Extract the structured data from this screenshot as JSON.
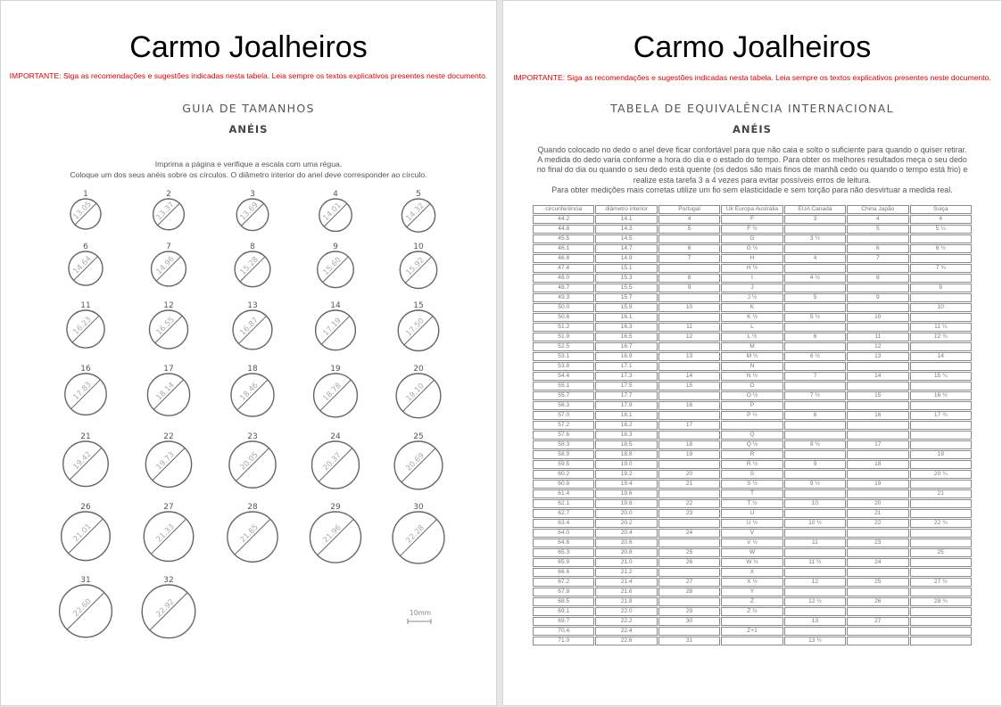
{
  "page1": {
    "brand": "Carmo Joalheiros",
    "notice": "IMPORTANTE: Siga as recomendações e sugestões indicadas nesta tabela. Leia sempre os textos explicativos presentes neste documento.",
    "heading": "GUIA DE TAMANHOS",
    "subheading": "ANÉIS",
    "instructions": [
      "Imprima a página e verifique a escala com uma régua.",
      "Coloque um dos seus anéis sobre os círculos. O diâmetro interior do anel deve corresponder ao círculo."
    ],
    "rings": [
      {
        "n": "1",
        "d": "13.05"
      },
      {
        "n": "2",
        "d": "13.37"
      },
      {
        "n": "3",
        "d": "13.69"
      },
      {
        "n": "4",
        "d": "14.01"
      },
      {
        "n": "5",
        "d": "14.32"
      },
      {
        "n": "6",
        "d": "14.64"
      },
      {
        "n": "7",
        "d": "14.96"
      },
      {
        "n": "8",
        "d": "15.28"
      },
      {
        "n": "9",
        "d": "15.60"
      },
      {
        "n": "10",
        "d": "15.92"
      },
      {
        "n": "11",
        "d": "16.23"
      },
      {
        "n": "12",
        "d": "16.55"
      },
      {
        "n": "13",
        "d": "16.87"
      },
      {
        "n": "14",
        "d": "17.19"
      },
      {
        "n": "15",
        "d": "17.50"
      },
      {
        "n": "16",
        "d": "17.83"
      },
      {
        "n": "17",
        "d": "18.14"
      },
      {
        "n": "18",
        "d": "18.46"
      },
      {
        "n": "19",
        "d": "18.78"
      },
      {
        "n": "20",
        "d": "19.10"
      },
      {
        "n": "21",
        "d": "19.42"
      },
      {
        "n": "22",
        "d": "19.73"
      },
      {
        "n": "23",
        "d": "20.05"
      },
      {
        "n": "24",
        "d": "20.37"
      },
      {
        "n": "25",
        "d": "20.69"
      },
      {
        "n": "26",
        "d": "21.01"
      },
      {
        "n": "27",
        "d": "21.33"
      },
      {
        "n": "28",
        "d": "21.65"
      },
      {
        "n": "29",
        "d": "21.96"
      },
      {
        "n": "30",
        "d": "22.28"
      },
      {
        "n": "31",
        "d": "22.60"
      },
      {
        "n": "32",
        "d": "22.92"
      }
    ],
    "scale_label": "10mm"
  },
  "page2": {
    "brand": "Carmo Joalheiros",
    "notice": "IMPORTANTE: Siga as recomendações e sugestões indicadas nesta tabela. Leia sempre os textos explicativos presentes neste documento.",
    "heading": "TABELA DE EQUIVALÊNCIA INTERNACIONAL",
    "subheading": "ANÉIS",
    "paragraph": [
      "Quando colocado no dedo o anel deve ficar confortável para que não caia e solto o suficiente para quando o quiser retirar.",
      "A medida do dedo varia conforme a hora do dia e o estado do tempo. Para obter os melhores resultados meça o seu dedo",
      "no final do dia ou quando o seu dedo está quente (os dedos são mais finos de manhã cedo ou quando o tempo está frio) e",
      "realize esta tarefa 3 a 4 vezes para evitar possíveis erros de leitura.",
      "Para obter medições mais corretas utilize um fio sem elasticidade e sem torção para não desvirtuar a medida real."
    ],
    "table": {
      "headers": [
        "circunferência",
        "diâmetro interior",
        "Portugal",
        "Uk Europa Austrália",
        "EUA Canadá",
        "China Japão",
        "Suiça"
      ],
      "rows": [
        [
          "44.2",
          "14.1",
          "4",
          "F",
          "3",
          "4",
          "4"
        ],
        [
          "44.8",
          "14.3",
          "5",
          "F ½",
          "",
          "5",
          "5 ¼"
        ],
        [
          "45.5",
          "14.5",
          "",
          "G",
          "3 ½",
          "",
          ""
        ],
        [
          "46.1",
          "14.7",
          "6",
          "G ½",
          "",
          "6",
          "6 ½"
        ],
        [
          "46.8",
          "14.9",
          "7",
          "H",
          "4",
          "7",
          ""
        ],
        [
          "47.4",
          "15.1",
          "",
          "H ½",
          "",
          "",
          "7 ¾"
        ],
        [
          "48.0",
          "15.3",
          "8",
          "I",
          "4 ½",
          "8",
          ""
        ],
        [
          "48.7",
          "15.5",
          "9",
          "J",
          "",
          "",
          "9"
        ],
        [
          "49.3",
          "15.7",
          "",
          "J ½",
          "5",
          "9",
          ""
        ],
        [
          "50.0",
          "15.9",
          "10",
          "K",
          "",
          "",
          "10"
        ],
        [
          "50.6",
          "16.1",
          "",
          "K ½",
          "5 ½",
          "10",
          ""
        ],
        [
          "51.2",
          "16.3",
          "11",
          "L",
          "",
          "",
          "11 ¼"
        ],
        [
          "51.9",
          "16.5",
          "12",
          "L ½",
          "6",
          "11",
          "12 ¾"
        ],
        [
          "52.5",
          "16.7",
          "",
          "M",
          "",
          "12",
          ""
        ],
        [
          "53.1",
          "16.9",
          "13",
          "M ½",
          "6 ½",
          "13",
          "14"
        ],
        [
          "53.8",
          "17.1",
          "",
          "N",
          "",
          "",
          ""
        ],
        [
          "54.4",
          "17.3",
          "14",
          "N ½",
          "7",
          "14",
          "15 ¼"
        ],
        [
          "55.1",
          "17.5",
          "15",
          "O",
          "",
          "",
          ""
        ],
        [
          "55.7",
          "17.7",
          "",
          "O ½",
          "7 ½",
          "15",
          "16 ½"
        ],
        [
          "56.3",
          "17.9",
          "16",
          "P",
          "",
          "",
          ""
        ],
        [
          "57.0",
          "18.1",
          "",
          "P ½",
          "8",
          "16",
          "17 ¾"
        ],
        [
          "57.2",
          "18.2",
          "17",
          "",
          "",
          "",
          ""
        ],
        [
          "57.6",
          "18.3",
          "",
          "Q",
          "",
          "",
          ""
        ],
        [
          "58.3",
          "18.5",
          "18",
          "Q ½",
          "8 ½",
          "17",
          ""
        ],
        [
          "58.9",
          "18.8",
          "19",
          "R",
          "",
          "",
          "19"
        ],
        [
          "59.5",
          "19.0",
          "",
          "R ½",
          "9",
          "18",
          ""
        ],
        [
          "60.2",
          "19.2",
          "20",
          "S",
          "",
          "",
          "20 ¼"
        ],
        [
          "60.8",
          "19.4",
          "21",
          "S ½",
          "9 ½",
          "19",
          ""
        ],
        [
          "61.4",
          "19.6",
          "",
          "T",
          "",
          "",
          "21"
        ],
        [
          "62.1",
          "19.8",
          "22",
          "T ½",
          "10",
          "20",
          ""
        ],
        [
          "62.7",
          "20.0",
          "23",
          "U",
          "",
          "21",
          ""
        ],
        [
          "63.4",
          "20.2",
          "",
          "U ½",
          "10 ½",
          "22",
          "22 ¾"
        ],
        [
          "64.0",
          "20.4",
          "24",
          "V",
          "",
          "",
          ""
        ],
        [
          "64.6",
          "20.6",
          "",
          "V ½",
          "11",
          "23",
          ""
        ],
        [
          "65.3",
          "20.8",
          "25",
          "W",
          "",
          "",
          "25"
        ],
        [
          "65.9",
          "21.0",
          "26",
          "W ½",
          "11 ½",
          "24",
          ""
        ],
        [
          "66.6",
          "21.2",
          "",
          "X",
          "",
          "",
          ""
        ],
        [
          "67.2",
          "21.4",
          "27",
          "X ½",
          "12",
          "25",
          "27 ½"
        ],
        [
          "67.8",
          "21.6",
          "28",
          "Y",
          "",
          "",
          ""
        ],
        [
          "68.5",
          "21.8",
          "",
          "Z",
          "12 ½",
          "26",
          "28 ¾"
        ],
        [
          "69.1",
          "22.0",
          "29",
          "Z ½",
          "",
          "",
          ""
        ],
        [
          "69.7",
          "22.2",
          "30",
          "",
          "13",
          "27",
          ""
        ],
        [
          "70.4",
          "22.4",
          "",
          "Z+1",
          "",
          "",
          ""
        ],
        [
          "71.0",
          "22.6",
          "31",
          "",
          "13 ½",
          "",
          ""
        ]
      ]
    }
  }
}
